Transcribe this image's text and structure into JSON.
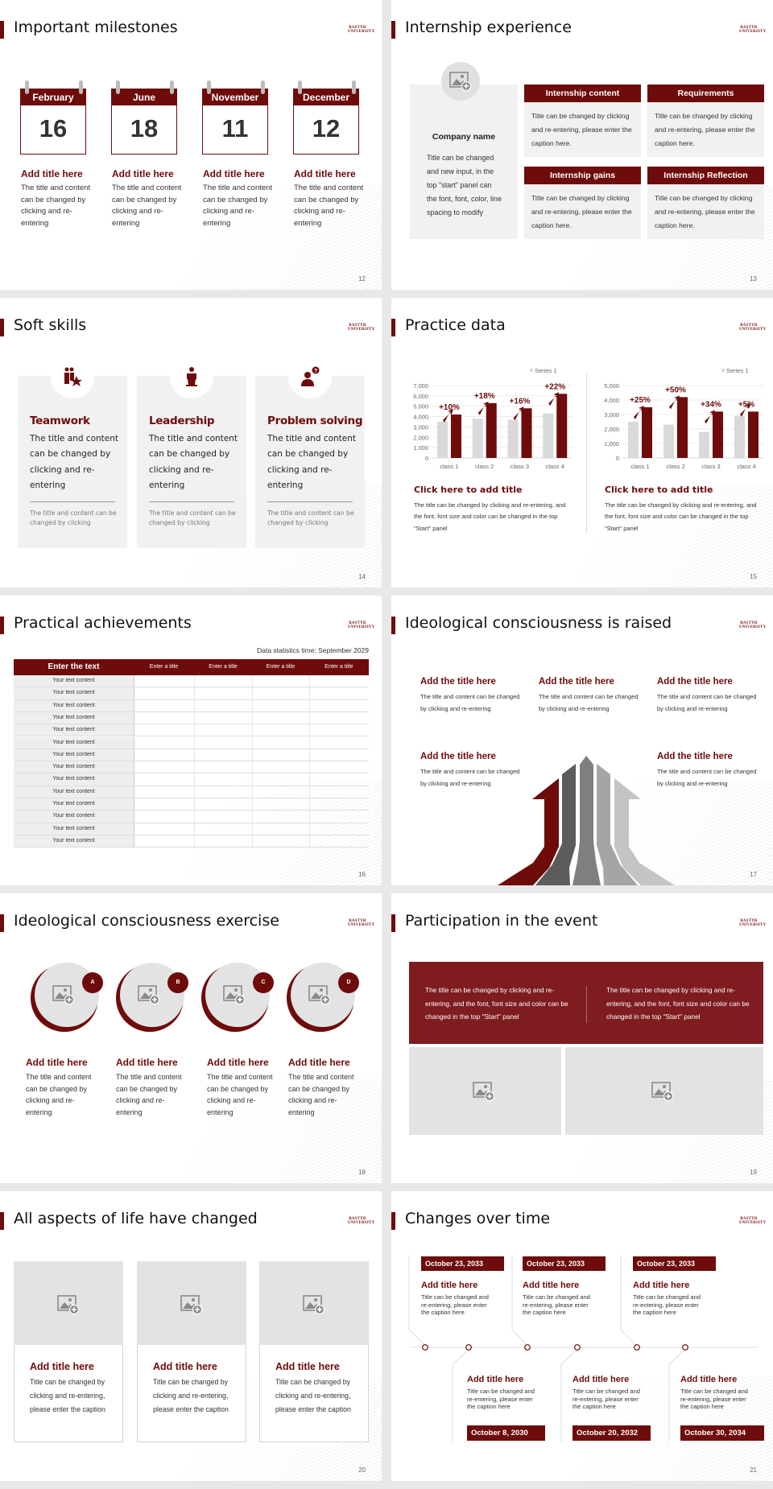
{
  "logo_text": "BASTYR UNIVERSITY",
  "colors": {
    "accent": "#6e0b0b",
    "panel": "#f1f1f1",
    "placeholder": "#e3e3e3",
    "series_gray": "#d9d9d9"
  },
  "slides": [
    {
      "title": "Important milestones",
      "page": "12",
      "milestones": [
        {
          "month": "February",
          "day": "16",
          "title": "Add title here",
          "body": "The title and content can be changed by clicking and re-entering"
        },
        {
          "month": "June",
          "day": "18",
          "title": "Add title here",
          "body": "The title and content can be changed by clicking and re-entering"
        },
        {
          "month": "November",
          "day": "11",
          "title": "Add title here",
          "body": "The title and content can be changed by clicking and re-entering"
        },
        {
          "month": "December",
          "day": "12",
          "title": "Add title here",
          "body": "The title and content can be changed by clicking and re-entering"
        }
      ]
    },
    {
      "title": "Internship experience",
      "page": "13",
      "company": {
        "name": "Company name",
        "body": "Title can be changed and new input, in the top \"start\" panel can the font, font, color, line spacing to modify",
        "icon": "image-add-icon"
      },
      "boxes": [
        {
          "heading": "Internship content",
          "body": "Title can be changed by clicking and re-entering, please enter the caption here."
        },
        {
          "heading": "Requirements",
          "body": "Title can be changed by clicking and re-entering, please enter the caption here."
        },
        {
          "heading": "Internship gains",
          "body": "Title can be changed by clicking and re-entering, please enter the caption here."
        },
        {
          "heading": "Internship Reflection",
          "body": "Title can be changed by clicking and re-entering, please enter the caption here."
        }
      ]
    },
    {
      "title": "Soft skills",
      "page": "14",
      "skills": [
        {
          "icon": "team-star-icon",
          "title": "Teamwork",
          "body": "The title and content can be changed by clicking and re-entering",
          "note": "The title and content can be changed by clicking"
        },
        {
          "icon": "podium-speaker-icon",
          "title": "Leadership",
          "body": "The title and content can be changed by clicking and re-entering",
          "note": "The title and content can be changed by clicking"
        },
        {
          "icon": "person-question-icon",
          "title": "Problem solving",
          "body": "The title and content can be changed by clicking and re-entering",
          "note": "The title and content can be changed by clicking"
        }
      ]
    },
    {
      "title": "Practice data",
      "page": "15",
      "captions": [
        {
          "title": "Click here to add title",
          "body": "The title can be changed by clicking and re-entering, and the font, font size and color can be changed in the top \"Start\" panel"
        },
        {
          "title": "Click here to add title",
          "body": "The title can be changed by clicking and re-entering, and the font, font size and color can be changed in the top \"Start\" panel"
        }
      ]
    },
    {
      "title": "Practical achievements",
      "page": "16",
      "stats_time": "Data statistics time: September 2029",
      "table": {
        "headers": [
          "Enter the text",
          "Enter a title",
          "Enter a title",
          "Enter a title",
          "Enter a title"
        ],
        "rows": [
          "Your text content",
          "Your text content",
          "Your text content",
          "Your text content",
          "Your text content",
          "Your text content",
          "Your text content",
          "Your text content",
          "Your text content",
          "Your text content",
          "Your text content",
          "Your text content",
          "Your text content",
          "Your text content"
        ]
      }
    },
    {
      "title": "Ideological consciousness is raised",
      "page": "17",
      "items": [
        {
          "title": "Add the title here",
          "body": "The title and content can be changed by clicking and re-entering"
        },
        {
          "title": "Add the title here",
          "body": "The title and content can be changed by clicking and re-entering"
        },
        {
          "title": "Add the title here",
          "body": "The title and content can be changed by clicking and re-entering"
        },
        {
          "title": "Add the title here",
          "body": "The title and content can be changed by clicking and re-entering"
        },
        {
          "title": "Add the title here",
          "body": "The title and content can be changed by clicking and re-entering"
        }
      ]
    },
    {
      "title": "Ideological consciousness exercise",
      "page": "18",
      "items": [
        {
          "badge": "A",
          "title": "Add title here",
          "body": "The title and content can be changed by clicking and re-entering"
        },
        {
          "badge": "B",
          "title": "Add title here",
          "body": "The title and content can be changed by clicking and re-entering"
        },
        {
          "badge": "C",
          "title": "Add title here",
          "body": "The title and content can be changed by clicking and re-entering"
        },
        {
          "badge": "D",
          "title": "Add title here",
          "body": "The title and content can be changed by clicking and re-entering"
        }
      ]
    },
    {
      "title": "Participation in the event",
      "page": "19",
      "texts": [
        "The title can be changed by clicking and re-entering, and the font, font size and color can be changed in the top \"Start\" panel",
        "The title can be changed by clicking and re-entering, and the font, font size and color can be changed in the top \"Start\" panel"
      ]
    },
    {
      "title": "All aspects of life have changed",
      "page": "20",
      "cards": [
        {
          "title": "Add title here",
          "body": "Title can be changed by clicking and re-entering, please enter the caption"
        },
        {
          "title": "Add title here",
          "body": "Title can be changed by clicking and re-entering, please enter the caption"
        },
        {
          "title": "Add title here",
          "body": "Title can be changed by clicking and re-entering, please enter the caption"
        }
      ]
    },
    {
      "title": "Changes over time",
      "page": "21",
      "top": [
        {
          "date": "October 23, 2033",
          "title": "Add title here",
          "body": "Title can be changed and re-entering, please enter the caption here"
        },
        {
          "date": "October 23, 2033",
          "title": "Add title here",
          "body": "Title can be changed and re-entering, please enter the caption here"
        },
        {
          "date": "October 23, 2033",
          "title": "Add title here",
          "body": "Title can be changed and re-entering, please enter the caption here"
        }
      ],
      "bottom": [
        {
          "date": "October 8, 2030",
          "title": "Add title here",
          "body": "Title can be changed and re-entering, please enter the caption here"
        },
        {
          "date": "October 20, 2032",
          "title": "Add title here",
          "body": "Title can be changed and re-entering, please enter the caption here"
        },
        {
          "date": "October 30, 2034",
          "title": "Add title here",
          "body": "Title can be changed and re-entering, please enter the caption here"
        }
      ]
    }
  ],
  "chart_data": [
    {
      "type": "bar",
      "categories": [
        "class 1",
        "class 2",
        "class 3",
        "class 4"
      ],
      "series": [
        {
          "name": "Series 1",
          "color": "#d9d9d9",
          "values": [
            3500,
            3800,
            3700,
            4300
          ]
        },
        {
          "color": "#6e0b0b",
          "values": [
            4200,
            5300,
            4800,
            6200
          ]
        }
      ],
      "annotations": [
        "+10%",
        "+18%",
        "+16%",
        "+22%"
      ],
      "ylim": [
        0,
        7000
      ],
      "yticks": [
        "0",
        "1,000",
        "2,000",
        "3,000",
        "4,000",
        "5,000",
        "6,000",
        "7,000"
      ],
      "grid": true,
      "legend": "top-right"
    },
    {
      "type": "bar",
      "categories": [
        "class 1",
        "class 2",
        "class 3",
        "class 4"
      ],
      "series": [
        {
          "name": "Series 1",
          "color": "#d9d9d9",
          "values": [
            2500,
            2300,
            1800,
            2900
          ]
        },
        {
          "color": "#6e0b0b",
          "values": [
            3500,
            4200,
            3200,
            3200
          ]
        }
      ],
      "annotations": [
        "+25%",
        "+50%",
        "+34%",
        "+5%"
      ],
      "ylim": [
        0,
        5000
      ],
      "yticks": [
        "0",
        "1,000",
        "2,000",
        "3,000",
        "4,000",
        "5,000"
      ],
      "grid": true,
      "legend": "top-right"
    }
  ]
}
